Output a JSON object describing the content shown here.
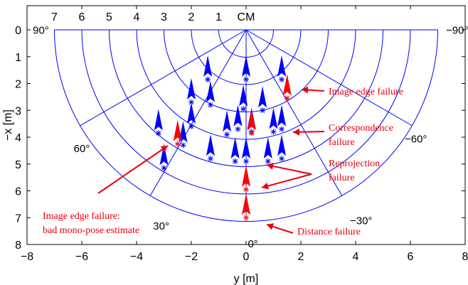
{
  "chart_data": {
    "type": "scatter",
    "title": "",
    "xlabel": "y [m]",
    "ylabel": "−x [m]",
    "xlim": [
      -8,
      8
    ],
    "ylim": [
      0,
      8
    ],
    "x_ticks": [
      "−8",
      "−6",
      "−4",
      "−2",
      "0",
      "2",
      "4",
      "6",
      "8"
    ],
    "y_ticks": [
      "0",
      "1",
      "2",
      "3",
      "4",
      "5",
      "6",
      "7",
      "8"
    ],
    "y_axis_reversed": true,
    "grid": false,
    "polar_grid": {
      "origin": [
        0,
        0
      ],
      "ring_radii": [
        1,
        2,
        3,
        4,
        5,
        6,
        7
      ],
      "ring_labels": [
        "7",
        "6",
        "5",
        "4",
        "3",
        "2",
        "1",
        "CM"
      ],
      "spoke_angles": [
        90,
        60,
        30,
        0,
        -30,
        -60,
        -90
      ],
      "angle_labels": [
        "90°",
        "60°",
        "30°",
        "0°",
        "−30°",
        "−60°",
        "−90°"
      ],
      "color": "#0000ff"
    },
    "colors": {
      "success": "#0000ff",
      "failure": "#ff0000",
      "annotation": "#e8000b",
      "axes": "#000000"
    },
    "series": [
      {
        "name": "",
        "marker": "asterisk with arrow (heading)",
        "color": "#0000ff",
        "points": [
          {
            "x": -1.4,
            "y": 1.85,
            "heading": 0
          },
          {
            "x": 0,
            "y": 1.85,
            "heading": 0
          },
          {
            "x": 1.3,
            "y": 1.85,
            "heading": 0
          },
          {
            "x": -2.0,
            "y": 2.7,
            "heading": 0
          },
          {
            "x": -1.3,
            "y": 2.8,
            "heading": 0
          },
          {
            "x": -0.1,
            "y": 2.95,
            "heading": 0
          },
          {
            "x": 0.6,
            "y": 3.0,
            "heading": 0
          },
          {
            "x": -2.3,
            "y": 4.3,
            "heading": 0
          },
          {
            "x": -0.3,
            "y": 3.7,
            "heading": 0
          },
          {
            "x": 0.2,
            "y": 3.8,
            "heading": 0
          },
          {
            "x": 1.0,
            "y": 3.8,
            "heading": 0
          },
          {
            "x": 1.3,
            "y": 3.7,
            "heading": 0
          },
          {
            "x": -0.7,
            "y": 3.9,
            "heading": 0
          },
          {
            "x": -2.0,
            "y": 3.6,
            "heading": 0
          },
          {
            "x": -3.2,
            "y": 3.85,
            "heading": 0
          },
          {
            "x": -3.0,
            "y": 5.15,
            "heading": 0
          },
          {
            "x": -1.3,
            "y": 4.8,
            "heading": 0
          },
          {
            "x": -0.4,
            "y": 4.9,
            "heading": 0
          },
          {
            "x": 0,
            "y": 4.9,
            "heading": 0
          },
          {
            "x": 0.8,
            "y": 4.9,
            "heading": 0
          },
          {
            "x": 1.3,
            "y": 4.8,
            "heading": 0
          }
        ]
      },
      {
        "name": "",
        "marker": "asterisk with arrow (heading)",
        "color": "#ff0000",
        "points": [
          {
            "x": 1.5,
            "y": 2.55,
            "heading": 0
          },
          {
            "x": -2.5,
            "y": 4.25,
            "heading": 0
          },
          {
            "x": 0.2,
            "y": 3.85,
            "heading": 0
          },
          {
            "x": 0,
            "y": 5.95,
            "heading": 0
          },
          {
            "x": 0,
            "y": 7.0,
            "heading": 0
          }
        ]
      }
    ],
    "annotations": [
      {
        "text": "Image edge failure",
        "target": [
          1.5,
          2.55
        ]
      },
      {
        "text": "Correspondence",
        "target": [
          1.5,
          3.7
        ]
      },
      {
        "text": "failure",
        "target": [
          1.5,
          3.7
        ]
      },
      {
        "text": "Reprojection",
        "target": [
          0.4,
          5.0
        ]
      },
      {
        "text": "failure",
        "target": [
          0.4,
          5.9
        ]
      },
      {
        "text": "Image edge failure:",
        "target": [
          -2.8,
          4.2
        ]
      },
      {
        "text": "bad mono-pose estimate",
        "target": [
          -2.8,
          4.2
        ]
      },
      {
        "text": "Distance failure",
        "target": [
          0.2,
          7.0
        ]
      }
    ]
  }
}
